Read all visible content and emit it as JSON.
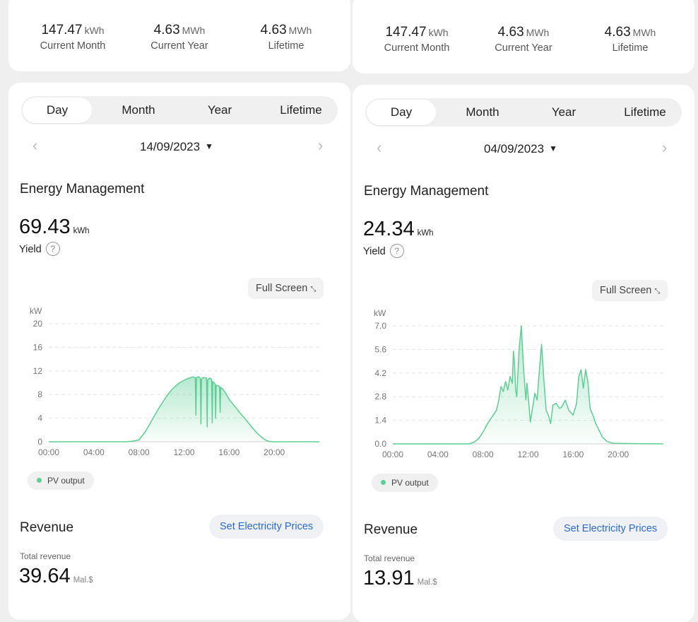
{
  "panels": [
    {
      "summary": [
        {
          "value": "147.47",
          "unit": "kWh",
          "label": "Current Month"
        },
        {
          "value": "4.63",
          "unit": "MWh",
          "label": "Current Year"
        },
        {
          "value": "4.63",
          "unit": "MWh",
          "label": "Lifetime"
        }
      ],
      "tabs": [
        "Day",
        "Month",
        "Year",
        "Lifetime"
      ],
      "active_tab": "Day",
      "nav": {
        "prev": "‹",
        "next": "›"
      },
      "date": "14/09/2023",
      "date_caret": "▼",
      "energy_title": "Energy Management",
      "yield_value": "69.43",
      "yield_unit": "kWh",
      "yield_label": "Yield",
      "help_icon": "?",
      "full_screen_label": "Full Screen",
      "full_screen_icon": "⤡",
      "legend_label": "PV output",
      "revenue_title": "Revenue",
      "set_prices_label": "Set Electricity Prices",
      "total_revenue_label": "Total revenue",
      "total_revenue_value": "39.64",
      "total_revenue_unit": "Mal.$"
    },
    {
      "summary": [
        {
          "value": "147.47",
          "unit": "kWh",
          "label": "Current Month"
        },
        {
          "value": "4.63",
          "unit": "MWh",
          "label": "Current Year"
        },
        {
          "value": "4.63",
          "unit": "MWh",
          "label": "Lifetime"
        }
      ],
      "tabs": [
        "Day",
        "Month",
        "Year",
        "Lifetime"
      ],
      "active_tab": "Day",
      "nav": {
        "prev": "‹",
        "next": "›"
      },
      "date": "04/09/2023",
      "date_caret": "▼",
      "energy_title": "Energy Management",
      "yield_value": "24.34",
      "yield_unit": "kWh",
      "yield_label": "Yield",
      "help_icon": "?",
      "full_screen_label": "Full Screen",
      "full_screen_icon": "⤡",
      "legend_label": "PV output",
      "revenue_title": "Revenue",
      "set_prices_label": "Set Electricity Prices",
      "total_revenue_label": "Total revenue",
      "total_revenue_value": "13.91",
      "total_revenue_unit": "Mal.$"
    }
  ],
  "colors": {
    "series": "#5ccf94",
    "accent_link": "#2a6ad8"
  },
  "chart_data": [
    {
      "type": "area",
      "ylabel": "kW",
      "yticks": [
        "0",
        "4",
        "8",
        "12",
        "16",
        "20"
      ],
      "ylim": [
        0,
        20
      ],
      "xticks": [
        "00:00",
        "04:00",
        "08:00",
        "12:00",
        "16:00",
        "20:00"
      ],
      "xlim": [
        0,
        24
      ],
      "grid": true,
      "series": [
        {
          "name": "PV output",
          "x": [
            0,
            6.8,
            7.4,
            8.0,
            8.6,
            9.2,
            9.8,
            10.4,
            11.0,
            11.6,
            12.2,
            12.8,
            13.0,
            13.05,
            13.1,
            13.3,
            13.45,
            13.5,
            13.55,
            13.7,
            14.0,
            14.05,
            14.1,
            14.3,
            14.45,
            14.5,
            14.55,
            14.75,
            14.8,
            14.85,
            15.0,
            15.15,
            15.2,
            15.25,
            15.4,
            15.7,
            16.0,
            16.5,
            17.0,
            17.5,
            18.0,
            18.5,
            19.0,
            19.3,
            19.6,
            20.0,
            24
          ],
          "y": [
            0,
            0,
            0.1,
            0.3,
            1.8,
            3.8,
            5.8,
            7.6,
            9.0,
            10.0,
            10.6,
            11.0,
            10.8,
            4.5,
            10.9,
            11.0,
            10.8,
            3.0,
            10.6,
            10.9,
            10.8,
            2.5,
            10.5,
            10.8,
            10.5,
            3.2,
            10.2,
            9.8,
            4.0,
            9.6,
            9.5,
            9.4,
            5.0,
            9.2,
            9.0,
            8.2,
            7.2,
            6.0,
            4.8,
            3.7,
            2.5,
            1.4,
            0.6,
            0.2,
            0.05,
            0,
            0
          ]
        }
      ]
    },
    {
      "type": "area",
      "ylabel": "kW",
      "yticks": [
        "0.0",
        "1.4",
        "2.8",
        "4.2",
        "5.6",
        "7.0"
      ],
      "ylim": [
        0,
        7
      ],
      "xticks": [
        "00:00",
        "04:00",
        "08:00",
        "12:00",
        "16:00",
        "20:00"
      ],
      "xlim": [
        0,
        24
      ],
      "grid": true,
      "series": [
        {
          "name": "PV output",
          "x": [
            0,
            6.8,
            7.2,
            7.6,
            8.0,
            8.4,
            8.8,
            9.2,
            9.4,
            9.6,
            9.8,
            10.0,
            10.2,
            10.4,
            10.6,
            10.7,
            10.8,
            10.9,
            11.0,
            11.2,
            11.4,
            11.6,
            11.8,
            11.9,
            12.0,
            12.2,
            12.6,
            12.8,
            13.0,
            13.2,
            13.4,
            13.6,
            13.8,
            14.0,
            14.2,
            14.5,
            14.8,
            15.0,
            15.3,
            15.6,
            16.0,
            16.3,
            16.5,
            16.7,
            16.9,
            17.1,
            17.3,
            17.5,
            17.8,
            18.0,
            18.3,
            18.6,
            19.0,
            19.5,
            24
          ],
          "y": [
            0,
            0,
            0.1,
            0.3,
            0.7,
            1.2,
            1.6,
            2.0,
            2.6,
            3.4,
            3.1,
            3.7,
            3.2,
            4.0,
            3.6,
            5.5,
            4.8,
            3.2,
            2.8,
            5.6,
            7.0,
            4.5,
            2.6,
            3.6,
            2.9,
            1.3,
            3.0,
            2.6,
            4.4,
            5.9,
            3.8,
            2.0,
            1.7,
            1.2,
            2.3,
            2.4,
            2.1,
            2.2,
            2.6,
            2.0,
            1.7,
            2.4,
            4.0,
            4.4,
            3.3,
            4.4,
            3.7,
            2.1,
            1.6,
            1.2,
            0.8,
            0.4,
            0.15,
            0.03,
            0
          ]
        }
      ]
    }
  ]
}
